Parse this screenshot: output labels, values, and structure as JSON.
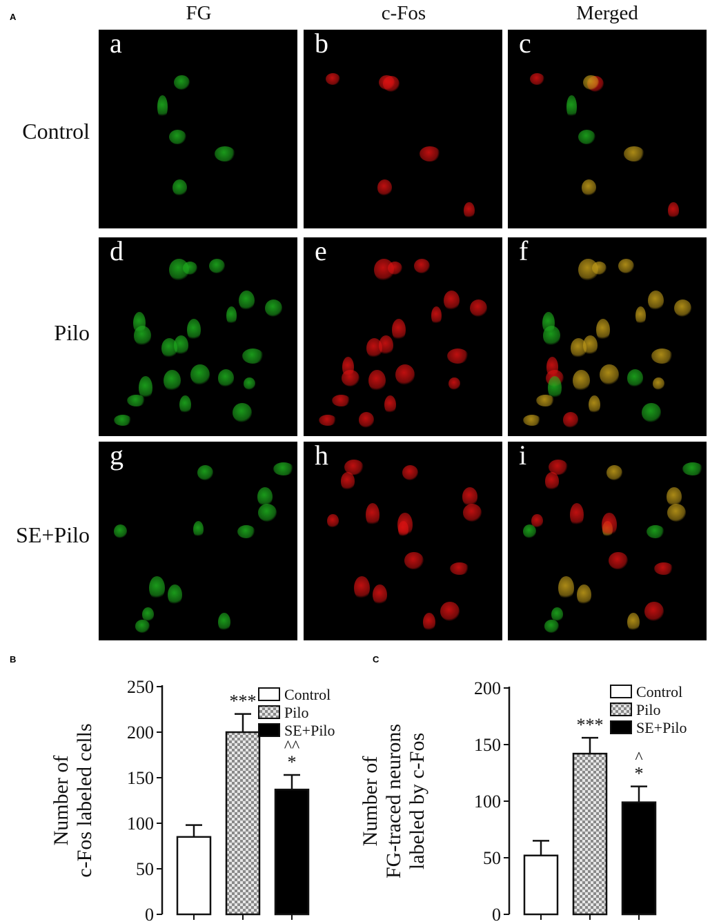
{
  "figure": {
    "panel_a_letter": "A",
    "panel_b_letter": "B",
    "panel_c_letter": "C",
    "column_headers": [
      "FG",
      "c-Fos",
      "Merged"
    ],
    "row_labels": [
      "Control",
      "Pilo",
      "SE+Pilo"
    ],
    "image_letters": [
      "a",
      "b",
      "c",
      "d",
      "e",
      "f",
      "g",
      "h",
      "i"
    ],
    "colors": {
      "fg_green": "#1fb51f",
      "cfos_red": "#e01212",
      "merged_yellow": "#c9a21a",
      "background": "#000000"
    }
  },
  "chart_data": [
    {
      "type": "bar",
      "categories": [
        "Control",
        "Pilo",
        "SE+Pilo"
      ],
      "values": [
        85,
        200,
        137
      ],
      "errors": [
        13,
        20,
        16
      ],
      "bar_fill": [
        "white",
        "checkered-gray",
        "black"
      ],
      "significance": [
        "",
        "***",
        "*"
      ],
      "significance_upper": [
        "",
        "",
        "^^"
      ],
      "ylabel_lines": [
        "Number of",
        "c-Fos labeled cells"
      ],
      "ylim": [
        0,
        250
      ],
      "yticks": [
        0,
        50,
        100,
        150,
        200,
        250
      ],
      "legend": [
        "Control",
        "Pilo",
        "SE+Pilo"
      ],
      "legend_position": "top-right"
    },
    {
      "type": "bar",
      "categories": [
        "Control",
        "Pilo",
        "SE+Pilo"
      ],
      "values": [
        52,
        142,
        99
      ],
      "errors": [
        13,
        14,
        14
      ],
      "bar_fill": [
        "white",
        "checkered-gray",
        "black"
      ],
      "significance": [
        "",
        "***",
        "*"
      ],
      "significance_upper": [
        "",
        "",
        "^"
      ],
      "ylabel_lines": [
        "Number of",
        "FG-traced neurons",
        "labeled by c-Fos"
      ],
      "ylim": [
        0,
        200
      ],
      "yticks": [
        0,
        50,
        100,
        150,
        200
      ],
      "legend": [
        "Control",
        "Pilo",
        "SE+Pilo"
      ],
      "legend_position": "top-right"
    }
  ]
}
